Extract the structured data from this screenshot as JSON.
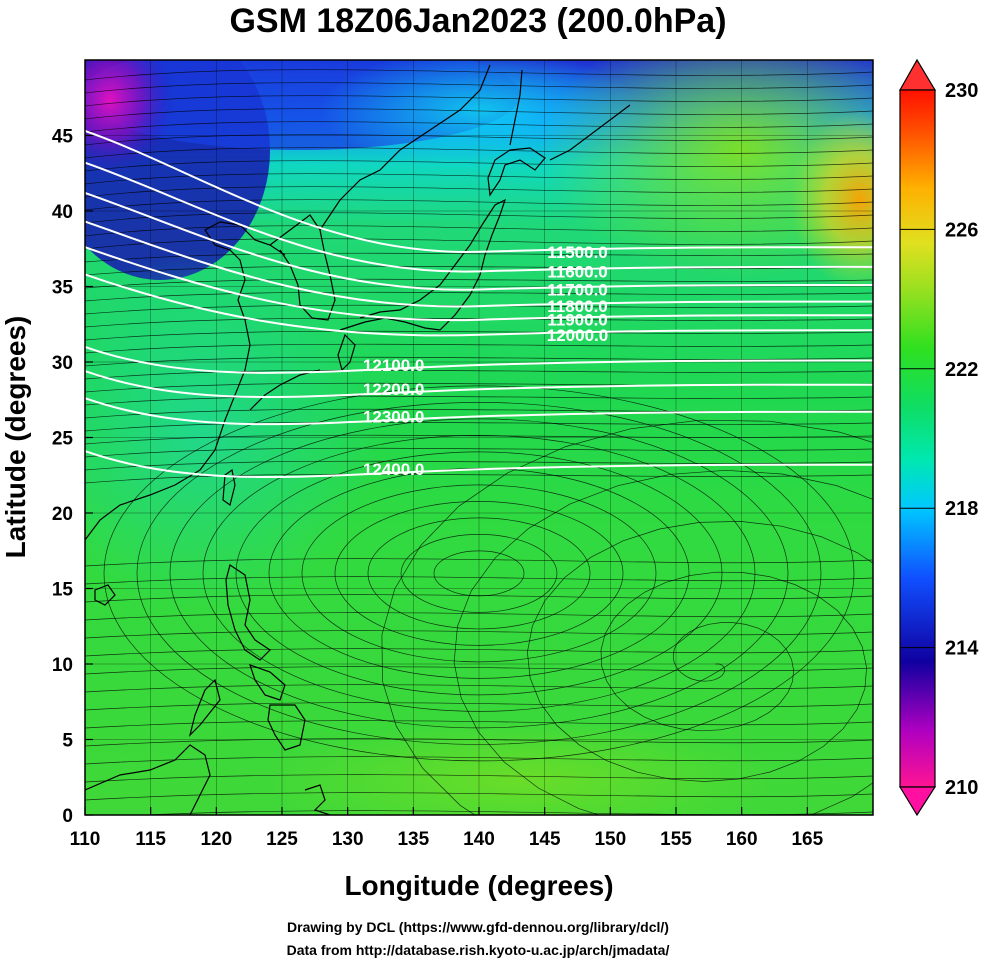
{
  "title": "GSM 18Z06Jan2023 (200.0hPa)",
  "xlabel": "Longitude (degrees)",
  "ylabel": "Latitude  (degrees)",
  "credits": [
    "Drawing by DCL (https://www.gfd-dennou.org/library/dcl/)",
    "Data from http://database.rish.kyoto-u.ac.jp/arch/jmadata/"
  ],
  "map": {
    "lon_range": [
      110,
      170
    ],
    "lat_range": [
      0,
      50
    ],
    "lon_ticks": [
      110,
      115,
      120,
      125,
      130,
      135,
      140,
      145,
      150,
      155,
      160,
      165
    ],
    "lat_ticks": [
      0,
      5,
      10,
      15,
      20,
      25,
      30,
      35,
      40,
      45
    ],
    "colorbar": {
      "min": 210,
      "max": 230,
      "tick_labels": [
        210,
        214,
        218,
        222,
        226,
        230
      ],
      "colors": [
        "#ff1493",
        "#a000c0",
        "#1010b0",
        "#1060ff",
        "#00c8ff",
        "#00e8b0",
        "#10dd50",
        "#40e020",
        "#a0e020",
        "#e0e020",
        "#ffc000",
        "#ff7000",
        "#ff2000"
      ]
    },
    "contours": [
      {
        "label": "11500.0"
      },
      {
        "label": "11600.0"
      },
      {
        "label": "11700.0"
      },
      {
        "label": "11800.0"
      },
      {
        "label": "11900.0"
      },
      {
        "label": "12000.0"
      },
      {
        "label": "12100.0"
      },
      {
        "label": "12200.0"
      },
      {
        "label": "12300.0"
      },
      {
        "label": "12400.0"
      }
    ]
  }
}
